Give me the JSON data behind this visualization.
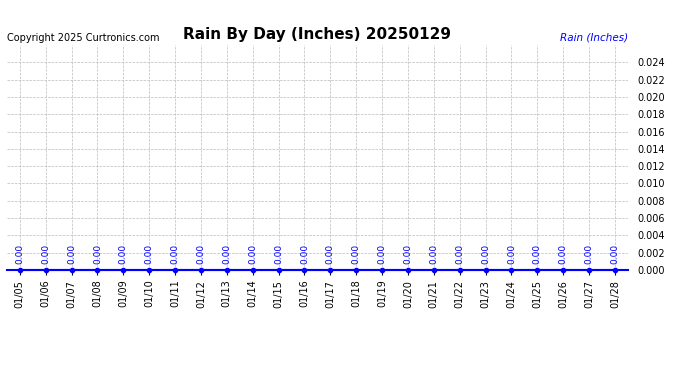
{
  "title": "Rain By Day (Inches) 20250129",
  "copyright_text": "Copyright 2025 Curtronics.com",
  "legend_label": "Rain (Inches)",
  "legend_color": "blue",
  "x_labels": [
    "01/05",
    "01/06",
    "01/07",
    "01/08",
    "01/09",
    "01/10",
    "01/11",
    "01/12",
    "01/13",
    "01/14",
    "01/15",
    "01/16",
    "01/17",
    "01/18",
    "01/19",
    "01/20",
    "01/21",
    "01/22",
    "01/23",
    "01/24",
    "01/25",
    "01/26",
    "01/27",
    "01/28"
  ],
  "values": [
    0.0,
    0.0,
    0.0,
    0.0,
    0.0,
    0.0,
    0.0,
    0.0,
    0.0,
    0.0,
    0.0,
    0.0,
    0.0,
    0.0,
    0.0,
    0.0,
    0.0,
    0.0,
    0.0,
    0.0,
    0.0,
    0.0,
    0.0,
    0.0
  ],
  "ylim": [
    0.0,
    0.026
  ],
  "yticks": [
    0.0,
    0.002,
    0.004,
    0.006,
    0.008,
    0.01,
    0.012,
    0.014,
    0.016,
    0.018,
    0.02,
    0.022,
    0.024
  ],
  "line_color": "blue",
  "marker_color": "blue",
  "grid_color": "#bbbbbb",
  "background_color": "#ffffff",
  "title_fontsize": 11,
  "annotation_fontsize": 6.5,
  "label_fontsize": 7,
  "copyright_fontsize": 7,
  "legend_fontsize": 7.5
}
